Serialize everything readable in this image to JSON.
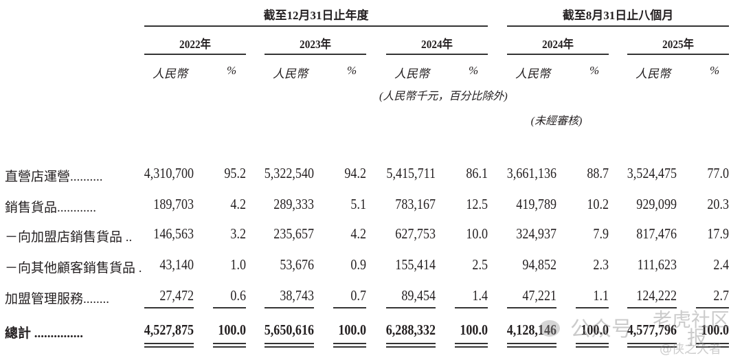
{
  "headers": {
    "group_year": "截至12月31日止年度",
    "group_eight_months": "截至8月31日止八個月",
    "years": [
      "2022年",
      "2023年",
      "2024年",
      "2024年",
      "2025年"
    ],
    "currency_label": "人民幣",
    "percent_label": "%",
    "unit_note": "(人民幣千元，百分比除外)",
    "unaudited_note": "(未經審核)"
  },
  "rows": [
    {
      "label": "直營店運營..........",
      "values": [
        "4,310,700",
        "95.2",
        "5,322,540",
        "94.2",
        "5,415,711",
        "86.1",
        "3,661,136",
        "88.7",
        "3,524,475",
        "77.0"
      ]
    },
    {
      "label": "銷售貨品............",
      "values": [
        "189,703",
        "4.2",
        "289,333",
        "5.1",
        "783,167",
        "12.5",
        "419,789",
        "10.2",
        "929,099",
        "20.3"
      ]
    },
    {
      "label": "－向加盟店銷售貨品 ..",
      "values": [
        "146,563",
        "3.2",
        "235,657",
        "4.2",
        "627,753",
        "10.0",
        "324,937",
        "7.9",
        "817,476",
        "17.9"
      ]
    },
    {
      "label": "－向其他顧客銷售貨品 .",
      "values": [
        "43,140",
        "1.0",
        "53,676",
        "0.9",
        "155,414",
        "2.5",
        "94,852",
        "2.3",
        "111,623",
        "2.4"
      ]
    },
    {
      "label": "加盟管理服務........",
      "values": [
        "27,472",
        "0.6",
        "38,743",
        "0.7",
        "89,454",
        "1.4",
        "47,221",
        "1.1",
        "124,222",
        "2.7"
      ]
    },
    {
      "label": "總計 ...............",
      "values": [
        "4,527,875",
        "100.0",
        "5,650,616",
        "100.0",
        "6,288,332",
        "100.0",
        "4,128,146",
        "100.0",
        "4,577,796",
        "100.0"
      ],
      "total": true
    }
  ],
  "watermark": {
    "channel": "公众号",
    "community": "老虎社区",
    "report": "报",
    "author": "@侠之大者"
  }
}
